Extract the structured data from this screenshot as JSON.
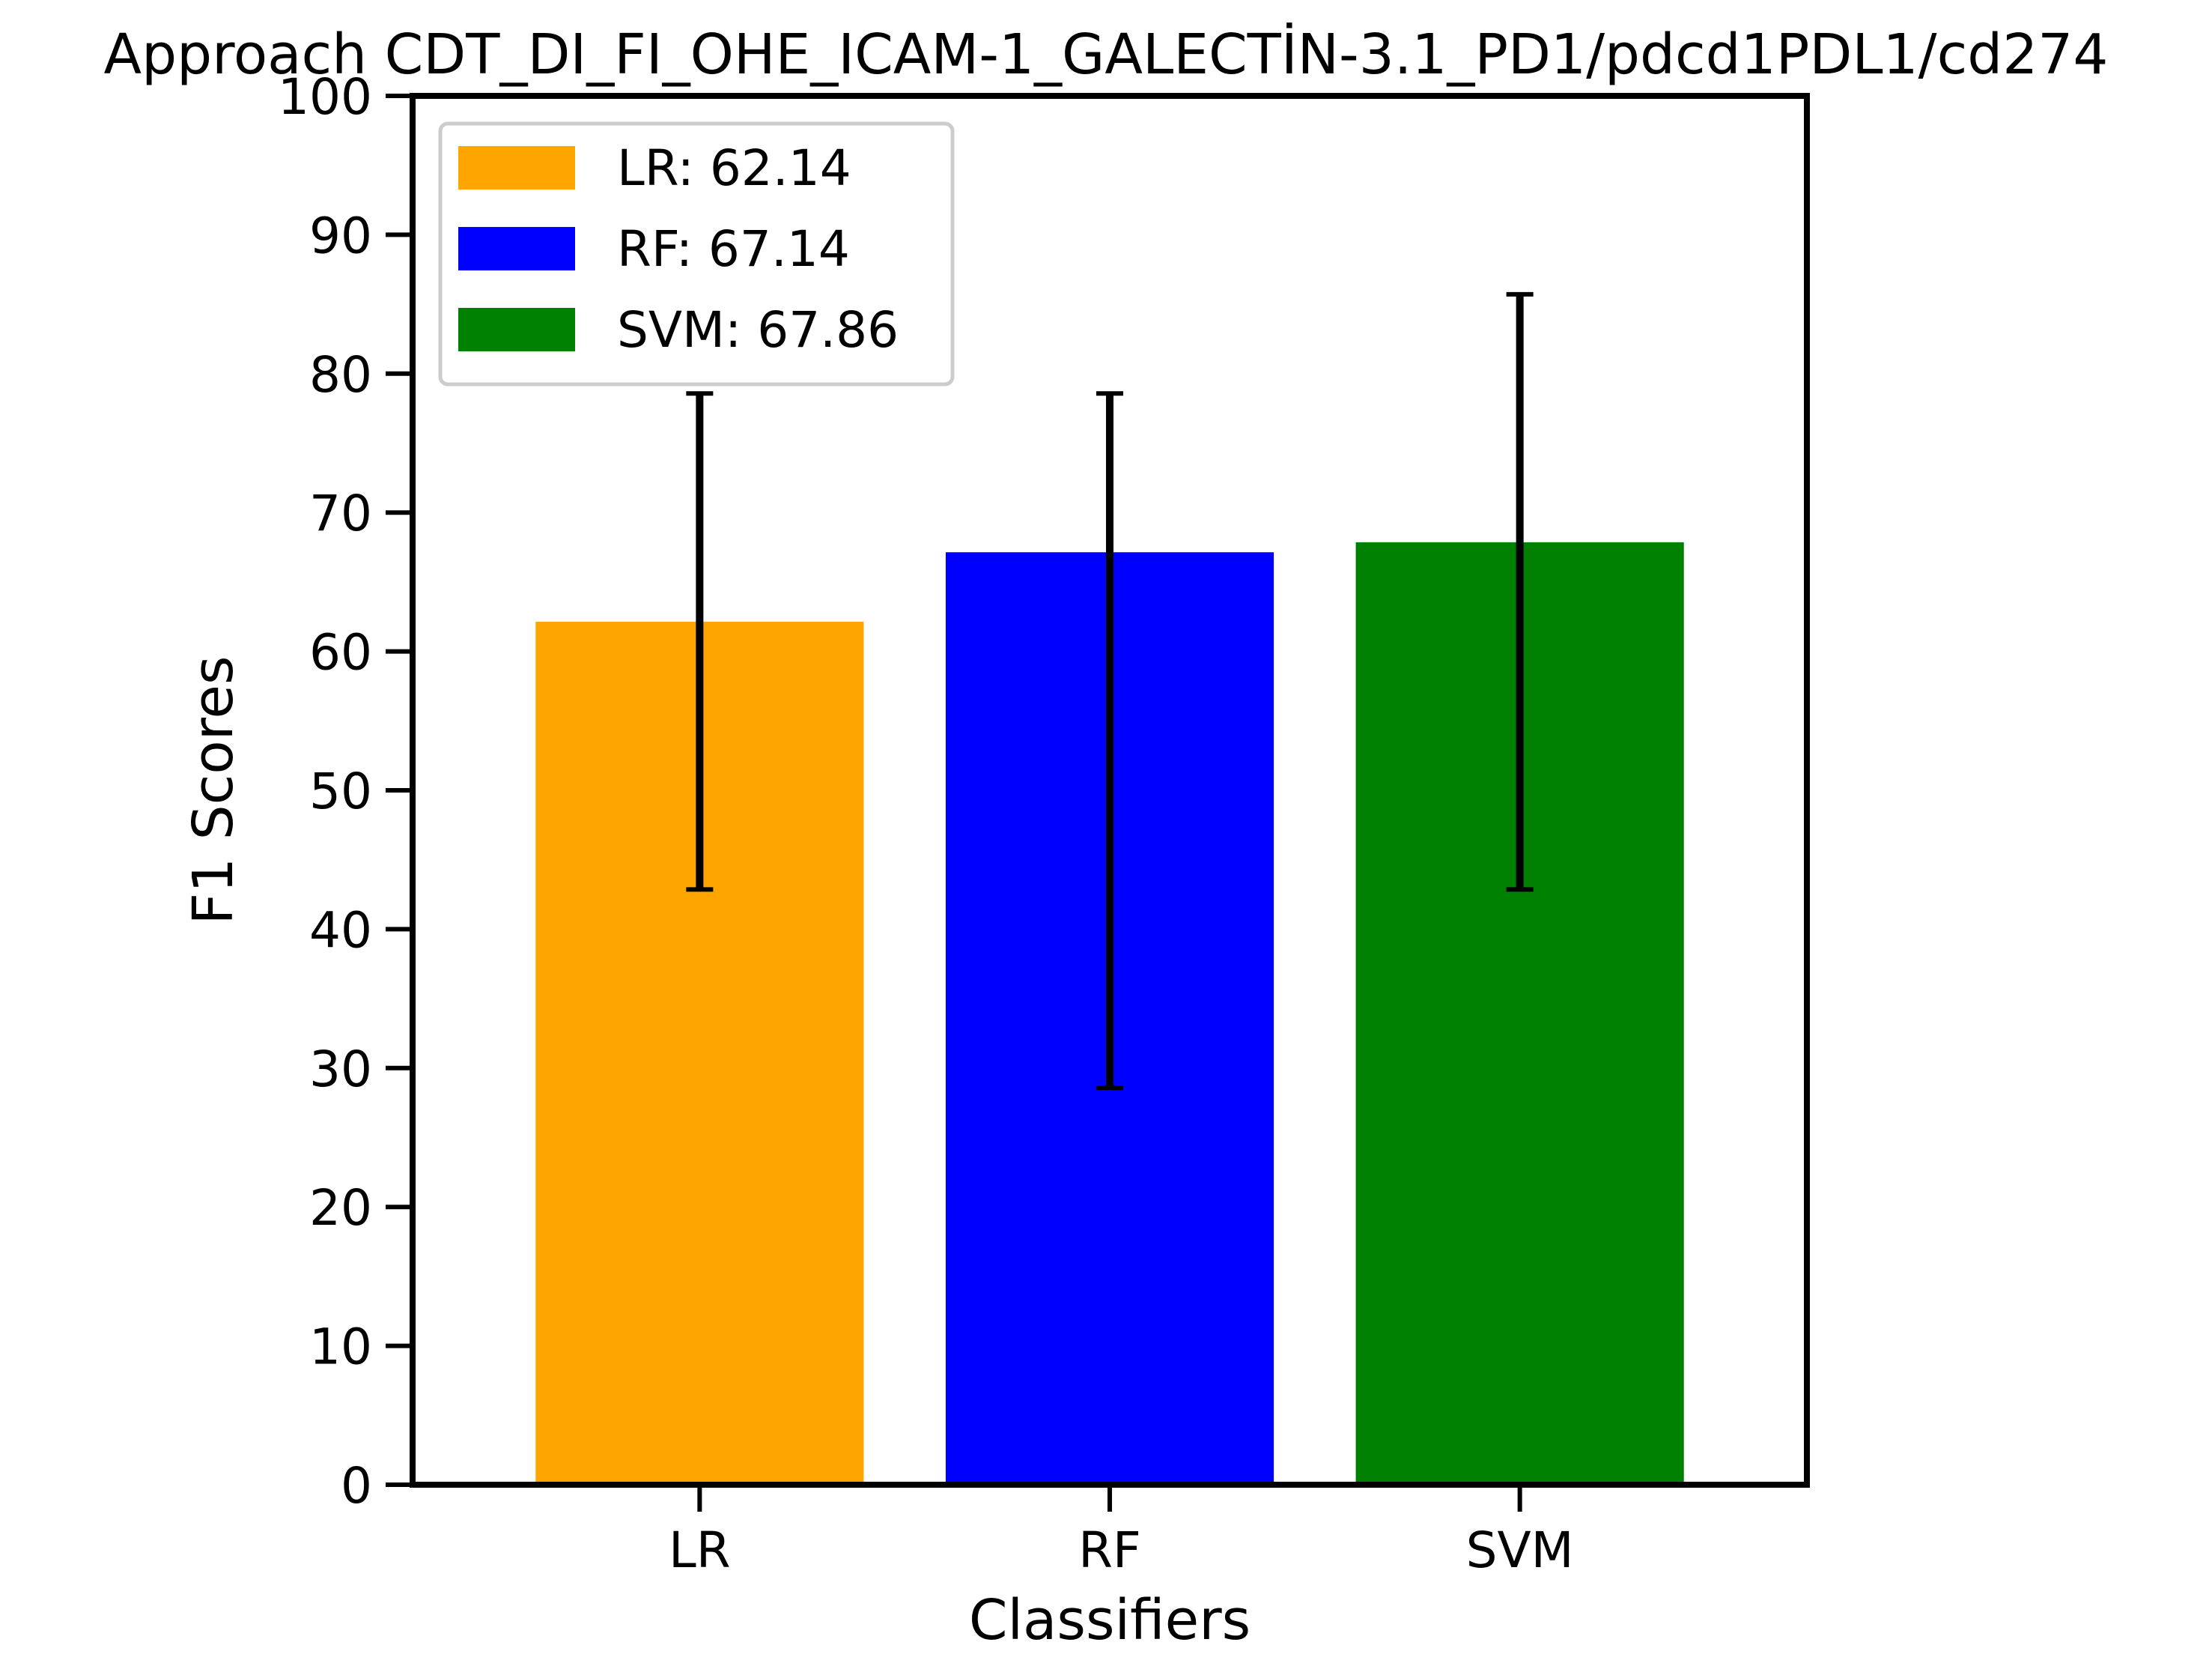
{
  "chart_data": {
    "type": "bar",
    "title": "Approach CDT_DI_FI_OHE_ICAM-1_GALECTİN-3.1_PD1/pdcd1PDL1/cd274",
    "xlabel": "Classifiers",
    "ylabel": "F1 Scores",
    "ylim": [
      0,
      100
    ],
    "yticks": [
      "0",
      "10",
      "20",
      "30",
      "40",
      "50",
      "60",
      "70",
      "80",
      "90",
      "100"
    ],
    "categories": [
      "LR",
      "RF",
      "SVM"
    ],
    "values": [
      62.14,
      67.14,
      67.86
    ],
    "error_low": [
      42.86,
      28.57,
      42.86
    ],
    "error_high": [
      78.57,
      78.57,
      85.71
    ],
    "colors": [
      "#FFA500",
      "#0000FF",
      "#008000"
    ],
    "legend": {
      "placement": "top-left",
      "entries": [
        "LR: 62.14",
        "RF: 67.14",
        "SVM: 67.86"
      ]
    },
    "grid": false
  }
}
